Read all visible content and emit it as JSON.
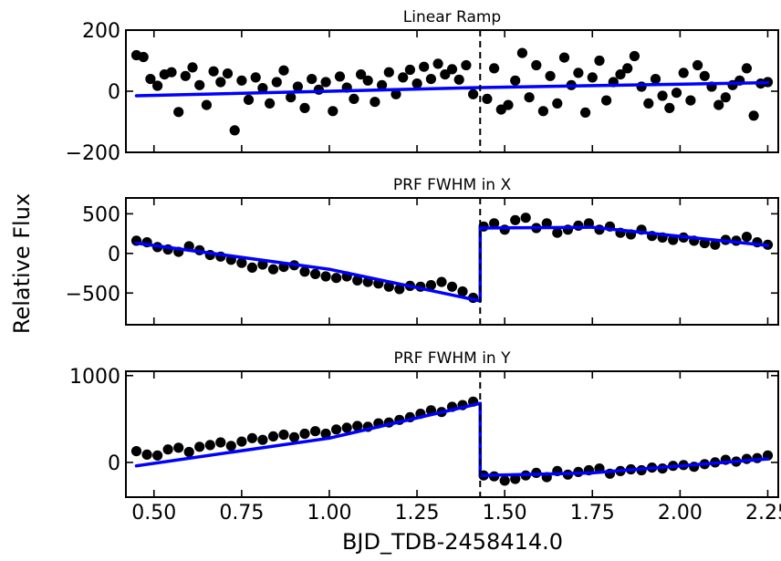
{
  "figure": {
    "xlabel": "BJD_TDB-2458414.0",
    "ylabel": "Relative Flux"
  },
  "chart_data": [
    {
      "type": "scatter",
      "title": "Linear Ramp",
      "xlim": [
        0.42,
        2.28
      ],
      "ylim": [
        -200,
        200
      ],
      "xticks": [
        0.5,
        0.75,
        1.0,
        1.25,
        1.5,
        1.75,
        2.0,
        2.25
      ],
      "yticks": [
        -200,
        0,
        200
      ],
      "ytick_labels": [
        "−200",
        "0",
        "200"
      ],
      "breakpoint_x": 1.43,
      "model": [
        [
          0.45,
          -15
        ],
        [
          1.43,
          12
        ],
        [
          2.25,
          28
        ]
      ],
      "series": [
        {
          "x": [
            0.45,
            0.47,
            0.49,
            0.51,
            0.53,
            0.55,
            0.57,
            0.59,
            0.61,
            0.63,
            0.65,
            0.67,
            0.69,
            0.71,
            0.73,
            0.75,
            0.77,
            0.79,
            0.81,
            0.83,
            0.85,
            0.87,
            0.89,
            0.91,
            0.93,
            0.95,
            0.97,
            0.99,
            1.01,
            1.03,
            1.05,
            1.07,
            1.09,
            1.11,
            1.13,
            1.15,
            1.17,
            1.19,
            1.21,
            1.23,
            1.25,
            1.27,
            1.29,
            1.31,
            1.33,
            1.35,
            1.37,
            1.39,
            1.41,
            1.45,
            1.47,
            1.49,
            1.51,
            1.53,
            1.55,
            1.57,
            1.59,
            1.61,
            1.63,
            1.65,
            1.67,
            1.69,
            1.71,
            1.73,
            1.75,
            1.77,
            1.79,
            1.81,
            1.83,
            1.85,
            1.87,
            1.89,
            1.91,
            1.93,
            1.95,
            1.97,
            1.99,
            2.01,
            2.03,
            2.05,
            2.07,
            2.09,
            2.11,
            2.13,
            2.15,
            2.17,
            2.19,
            2.21,
            2.23,
            2.25
          ],
          "y": [
            118,
            112,
            40,
            18,
            55,
            62,
            -68,
            50,
            78,
            20,
            -45,
            65,
            30,
            58,
            -128,
            35,
            -28,
            45,
            10,
            -40,
            30,
            68,
            -20,
            15,
            -55,
            40,
            5,
            30,
            -65,
            48,
            12,
            -25,
            55,
            35,
            -35,
            20,
            62,
            -10,
            45,
            70,
            25,
            80,
            40,
            90,
            55,
            72,
            38,
            85,
            -10,
            -25,
            75,
            -60,
            -45,
            35,
            125,
            -20,
            85,
            -65,
            50,
            -40,
            110,
            20,
            60,
            -70,
            45,
            100,
            -30,
            30,
            55,
            75,
            115,
            15,
            -40,
            40,
            -15,
            -55,
            -5,
            60,
            -30,
            85,
            50,
            15,
            -45,
            -20,
            20,
            35,
            75,
            -80,
            25,
            30
          ]
        }
      ]
    },
    {
      "type": "scatter",
      "title": "PRF FWHM in X",
      "xlim": [
        0.42,
        2.28
      ],
      "ylim": [
        -900,
        700
      ],
      "xticks": [
        0.5,
        0.75,
        1.0,
        1.25,
        1.5,
        1.75,
        2.0,
        2.25
      ],
      "yticks": [
        -500,
        0,
        500
      ],
      "ytick_labels": [
        "−500",
        "0",
        "500"
      ],
      "breakpoint_x": 1.43,
      "model": [
        [
          0.45,
          130
        ],
        [
          1.0,
          -200
        ],
        [
          1.43,
          -600
        ],
        [
          1.43,
          320
        ],
        [
          1.75,
          330
        ],
        [
          2.25,
          100
        ]
      ],
      "series": [
        {
          "x": [
            0.45,
            0.48,
            0.51,
            0.54,
            0.57,
            0.6,
            0.63,
            0.66,
            0.69,
            0.72,
            0.75,
            0.78,
            0.81,
            0.84,
            0.87,
            0.9,
            0.93,
            0.96,
            0.99,
            1.02,
            1.05,
            1.08,
            1.11,
            1.14,
            1.17,
            1.2,
            1.23,
            1.26,
            1.29,
            1.32,
            1.35,
            1.38,
            1.41,
            1.44,
            1.47,
            1.5,
            1.53,
            1.56,
            1.59,
            1.62,
            1.65,
            1.68,
            1.71,
            1.74,
            1.77,
            1.8,
            1.83,
            1.86,
            1.89,
            1.92,
            1.95,
            1.98,
            2.01,
            2.04,
            2.07,
            2.1,
            2.13,
            2.16,
            2.19,
            2.22,
            2.25
          ],
          "y": [
            160,
            140,
            80,
            50,
            20,
            90,
            40,
            -20,
            -40,
            -80,
            -120,
            -180,
            -140,
            -200,
            -170,
            -150,
            -230,
            -260,
            -290,
            -310,
            -290,
            -340,
            -360,
            -380,
            -420,
            -450,
            -410,
            -420,
            -400,
            -360,
            -420,
            -480,
            -560,
            340,
            380,
            300,
            420,
            450,
            320,
            380,
            260,
            300,
            350,
            380,
            300,
            340,
            260,
            240,
            300,
            220,
            200,
            170,
            200,
            160,
            130,
            110,
            170,
            160,
            210,
            140,
            110
          ]
        }
      ]
    },
    {
      "type": "scatter",
      "title": "PRF FWHM in Y",
      "xlim": [
        0.42,
        2.28
      ],
      "ylim": [
        -400,
        1050
      ],
      "xticks": [
        0.5,
        0.75,
        1.0,
        1.25,
        1.5,
        1.75,
        2.0,
        2.25
      ],
      "xtick_labels": [
        "0.50",
        "0.75",
        "1.00",
        "1.25",
        "1.50",
        "1.75",
        "2.00",
        "2.25"
      ],
      "yticks": [
        0,
        1000
      ],
      "ytick_labels": [
        "0",
        "1000"
      ],
      "breakpoint_x": 1.43,
      "model": [
        [
          0.45,
          -40
        ],
        [
          1.0,
          280
        ],
        [
          1.43,
          680
        ],
        [
          1.43,
          -150
        ],
        [
          1.75,
          -120
        ],
        [
          2.25,
          40
        ]
      ],
      "series": [
        {
          "x": [
            0.45,
            0.48,
            0.51,
            0.54,
            0.57,
            0.6,
            0.63,
            0.66,
            0.69,
            0.72,
            0.75,
            0.78,
            0.81,
            0.84,
            0.87,
            0.9,
            0.93,
            0.96,
            0.99,
            1.02,
            1.05,
            1.08,
            1.11,
            1.14,
            1.17,
            1.2,
            1.23,
            1.26,
            1.29,
            1.32,
            1.35,
            1.38,
            1.41,
            1.44,
            1.47,
            1.5,
            1.53,
            1.56,
            1.59,
            1.62,
            1.65,
            1.68,
            1.71,
            1.74,
            1.77,
            1.8,
            1.83,
            1.86,
            1.89,
            1.92,
            1.95,
            1.98,
            2.01,
            2.04,
            2.07,
            2.1,
            2.13,
            2.16,
            2.19,
            2.22,
            2.25
          ],
          "y": [
            130,
            90,
            80,
            150,
            170,
            120,
            180,
            200,
            230,
            190,
            240,
            280,
            260,
            300,
            320,
            290,
            330,
            360,
            330,
            380,
            400,
            420,
            410,
            450,
            460,
            490,
            520,
            560,
            600,
            580,
            640,
            660,
            700,
            -150,
            -160,
            -210,
            -190,
            -150,
            -120,
            -170,
            -100,
            -140,
            -110,
            -90,
            -70,
            -130,
            -100,
            -80,
            -90,
            -60,
            -70,
            -40,
            -30,
            -50,
            -20,
            0,
            30,
            10,
            40,
            50,
            80
          ]
        }
      ]
    }
  ]
}
